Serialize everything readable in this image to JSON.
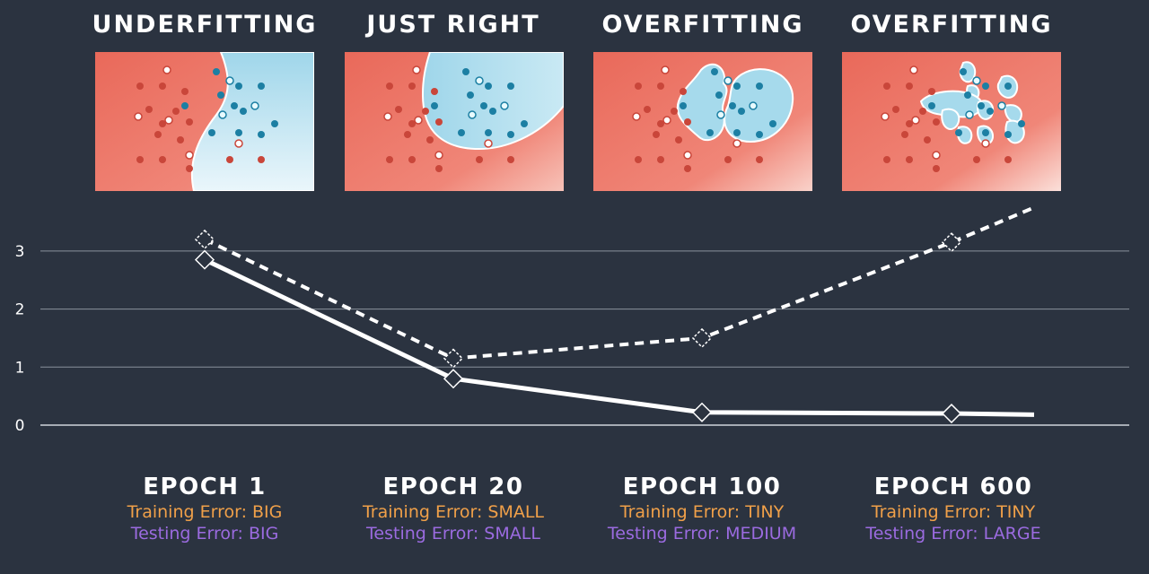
{
  "colors": {
    "background": "#2b3340",
    "red_region": "#ea6a5a",
    "blue_region": "#a8dcec",
    "training_line": "#ffffff",
    "testing_line": "#ffffff",
    "training_text": "#f0a049",
    "testing_text": "#9b6be0",
    "grid": "#8a929c"
  },
  "stages": [
    {
      "title": "UNDERFITTING",
      "epoch": "EPOCH 1",
      "training": "Training Error: BIG",
      "testing": "Testing Error: BIG"
    },
    {
      "title": "JUST RIGHT",
      "epoch": "EPOCH 20",
      "training": "Training Error: SMALL",
      "testing": "Testing Error: SMALL"
    },
    {
      "title": "OVERFITTING",
      "epoch": "EPOCH 100",
      "training": "Training Error: TINY",
      "testing": "Testing Error: MEDIUM"
    },
    {
      "title": "OVERFITTING",
      "epoch": "EPOCH 600",
      "training": "Training Error: TINY",
      "testing": "Testing Error: LARGE"
    }
  ],
  "chart_data": {
    "type": "line",
    "categories": [
      "EPOCH 1",
      "EPOCH 20",
      "EPOCH 100",
      "EPOCH 600"
    ],
    "yticks": [
      "0",
      "1",
      "2",
      "3"
    ],
    "ylim": [
      0,
      3.5
    ],
    "grid": true,
    "series": [
      {
        "style": "solid",
        "values": [
          2.85,
          0.8,
          0.22,
          0.2
        ],
        "tail": 0.18
      },
      {
        "style": "dashed",
        "values": [
          3.2,
          1.15,
          1.5,
          3.15
        ],
        "tail": 3.75
      }
    ]
  }
}
